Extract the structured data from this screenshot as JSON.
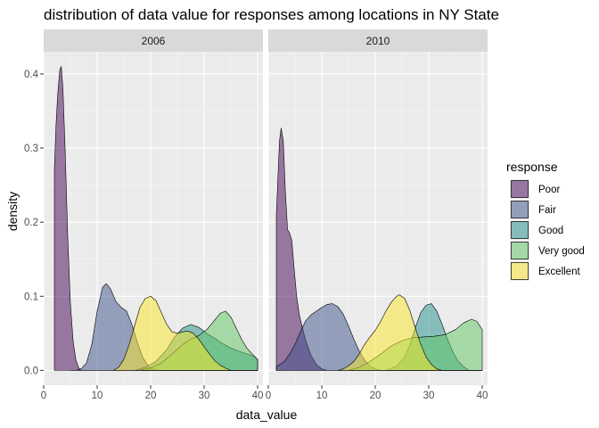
{
  "chart_data": {
    "type": "area",
    "subtype": "density",
    "title": "distribution of data value for responses among locations in NY State",
    "xlabel": "data_value",
    "ylabel": "density",
    "xlim": [
      0,
      41
    ],
    "ylim": [
      -0.02,
      0.43
    ],
    "x_ticks": [
      0,
      10,
      20,
      30,
      40
    ],
    "y_ticks": [
      0.0,
      0.1,
      0.2,
      0.3,
      0.4
    ],
    "y_tick_labels": [
      "0.0",
      "0.1",
      "0.2",
      "0.3",
      "0.4"
    ],
    "grid": true,
    "legend": {
      "title": "response",
      "position": "right"
    },
    "panels": [
      {
        "label": "2006",
        "series": [
          {
            "name": "Poor",
            "color": "#440154",
            "points": [
              [
                2,
                0.27
              ],
              [
                2.3,
                0.33
              ],
              [
                2.6,
                0.37
              ],
              [
                3,
                0.405
              ],
              [
                3.3,
                0.41
              ],
              [
                3.6,
                0.38
              ],
              [
                4,
                0.3
              ],
              [
                4.5,
                0.18
              ],
              [
                5,
                0.09
              ],
              [
                5.5,
                0.04
              ],
              [
                6,
                0.015
              ],
              [
                6.5,
                0.004
              ],
              [
                7,
                0.0
              ],
              [
                40,
                0.0
              ]
            ]
          },
          {
            "name": "Fair",
            "color": "#3B528B",
            "points": [
              [
                5,
                0.0
              ],
              [
                6,
                0.0
              ],
              [
                7,
                0.002
              ],
              [
                8,
                0.01
              ],
              [
                9,
                0.035
              ],
              [
                10,
                0.08
              ],
              [
                11,
                0.112
              ],
              [
                11.7,
                0.117
              ],
              [
                12.5,
                0.11
              ],
              [
                13.5,
                0.093
              ],
              [
                14.5,
                0.085
              ],
              [
                15.5,
                0.08
              ],
              [
                16.5,
                0.062
              ],
              [
                17.5,
                0.038
              ],
              [
                18.5,
                0.018
              ],
              [
                19.5,
                0.006
              ],
              [
                20.5,
                0.002
              ],
              [
                21.5,
                0.0
              ],
              [
                40,
                0.0
              ]
            ]
          },
          {
            "name": "Good",
            "color": "#21908C",
            "points": [
              [
                17,
                0.0
              ],
              [
                19,
                0.004
              ],
              [
                21,
                0.012
              ],
              [
                23,
                0.028
              ],
              [
                24.5,
                0.045
              ],
              [
                26,
                0.057
              ],
              [
                27.5,
                0.062
              ],
              [
                29,
                0.058
              ],
              [
                30.5,
                0.05
              ],
              [
                32,
                0.043
              ],
              [
                33.5,
                0.036
              ],
              [
                35,
                0.03
              ],
              [
                36.5,
                0.026
              ],
              [
                38,
                0.022
              ],
              [
                39,
                0.02
              ],
              [
                40,
                0.015
              ]
            ]
          },
          {
            "name": "Very good",
            "color": "#5DC863",
            "points": [
              [
                18,
                0.0
              ],
              [
                20,
                0.003
              ],
              [
                22,
                0.01
              ],
              [
                24,
                0.022
              ],
              [
                26,
                0.035
              ],
              [
                27.5,
                0.042
              ],
              [
                29,
                0.047
              ],
              [
                30.5,
                0.055
              ],
              [
                32,
                0.068
              ],
              [
                33,
                0.077
              ],
              [
                34,
                0.08
              ],
              [
                35,
                0.072
              ],
              [
                36,
                0.057
              ],
              [
                37,
                0.042
              ],
              [
                38,
                0.03
              ],
              [
                39,
                0.022
              ],
              [
                40,
                0.015
              ]
            ]
          },
          {
            "name": "Excellent",
            "color": "#FDE725",
            "points": [
              [
                13,
                0.0
              ],
              [
                14,
                0.004
              ],
              [
                15,
                0.015
              ],
              [
                16,
                0.035
              ],
              [
                17,
                0.06
              ],
              [
                18,
                0.085
              ],
              [
                19,
                0.097
              ],
              [
                20,
                0.1
              ],
              [
                21,
                0.094
              ],
              [
                22,
                0.078
              ],
              [
                23,
                0.062
              ],
              [
                24,
                0.052
              ],
              [
                25,
                0.05
              ],
              [
                26,
                0.052
              ],
              [
                27,
                0.053
              ],
              [
                28,
                0.05
              ],
              [
                29,
                0.042
              ],
              [
                30,
                0.032
              ],
              [
                31,
                0.022
              ],
              [
                32,
                0.013
              ],
              [
                33,
                0.007
              ],
              [
                34,
                0.003
              ],
              [
                35,
                0.0
              ],
              [
                40,
                0.0
              ]
            ]
          }
        ]
      },
      {
        "label": "2010",
        "series": [
          {
            "name": "Poor",
            "color": "#440154",
            "points": [
              [
                1.5,
                0.21
              ],
              [
                1.8,
                0.26
              ],
              [
                2.1,
                0.31
              ],
              [
                2.4,
                0.327
              ],
              [
                2.8,
                0.31
              ],
              [
                3.2,
                0.24
              ],
              [
                3.6,
                0.19
              ],
              [
                4,
                0.185
              ],
              [
                4.4,
                0.175
              ],
              [
                4.8,
                0.14
              ],
              [
                5.3,
                0.1
              ],
              [
                5.8,
                0.075
              ],
              [
                6.3,
                0.06
              ],
              [
                7,
                0.04
              ],
              [
                8,
                0.02
              ],
              [
                9,
                0.008
              ],
              [
                10,
                0.002
              ],
              [
                11,
                0.0
              ],
              [
                40,
                0.0
              ]
            ]
          },
          {
            "name": "Fair",
            "color": "#3B528B",
            "points": [
              [
                1.5,
                0.005
              ],
              [
                3,
                0.012
              ],
              [
                4,
                0.022
              ],
              [
                5,
                0.035
              ],
              [
                6,
                0.052
              ],
              [
                7,
                0.067
              ],
              [
                8,
                0.075
              ],
              [
                9,
                0.08
              ],
              [
                10,
                0.085
              ],
              [
                11,
                0.089
              ],
              [
                12,
                0.09
              ],
              [
                13,
                0.086
              ],
              [
                14,
                0.076
              ],
              [
                15,
                0.06
              ],
              [
                16,
                0.042
              ],
              [
                17,
                0.026
              ],
              [
                18,
                0.014
              ],
              [
                19,
                0.006
              ],
              [
                20,
                0.002
              ],
              [
                21,
                0.0
              ],
              [
                40,
                0.0
              ]
            ]
          },
          {
            "name": "Good",
            "color": "#21908C",
            "points": [
              [
                22,
                0.0
              ],
              [
                24,
                0.006
              ],
              [
                25.5,
                0.018
              ],
              [
                26.5,
                0.035
              ],
              [
                27.5,
                0.058
              ],
              [
                28.5,
                0.078
              ],
              [
                29.5,
                0.088
              ],
              [
                30.5,
                0.09
              ],
              [
                31.5,
                0.08
              ],
              [
                32.5,
                0.062
              ],
              [
                33.5,
                0.042
              ],
              [
                34.5,
                0.025
              ],
              [
                35.5,
                0.012
              ],
              [
                36.5,
                0.005
              ],
              [
                37.5,
                0.0
              ],
              [
                40,
                0.0
              ]
            ]
          },
          {
            "name": "Very good",
            "color": "#5DC863",
            "points": [
              [
                15,
                0.0
              ],
              [
                17,
                0.004
              ],
              [
                19,
                0.012
              ],
              [
                21,
                0.022
              ],
              [
                23,
                0.033
              ],
              [
                25,
                0.04
              ],
              [
                27,
                0.044
              ],
              [
                29,
                0.045
              ],
              [
                31,
                0.046
              ],
              [
                33,
                0.048
              ],
              [
                35,
                0.055
              ],
              [
                36.5,
                0.064
              ],
              [
                38,
                0.069
              ],
              [
                39,
                0.066
              ],
              [
                40,
                0.055
              ]
            ]
          },
          {
            "name": "Excellent",
            "color": "#FDE725",
            "points": [
              [
                13,
                0.0
              ],
              [
                14,
                0.002
              ],
              [
                15,
                0.006
              ],
              [
                16,
                0.012
              ],
              [
                17,
                0.022
              ],
              [
                18,
                0.035
              ],
              [
                19,
                0.045
              ],
              [
                20,
                0.054
              ],
              [
                21,
                0.066
              ],
              [
                22,
                0.08
              ],
              [
                23,
                0.092
              ],
              [
                24,
                0.1
              ],
              [
                24.5,
                0.102
              ],
              [
                25.5,
                0.097
              ],
              [
                26.5,
                0.08
              ],
              [
                27.5,
                0.057
              ],
              [
                28.5,
                0.035
              ],
              [
                29.5,
                0.018
              ],
              [
                30.5,
                0.008
              ],
              [
                31.5,
                0.002
              ],
              [
                32.5,
                0.0
              ],
              [
                40,
                0.0
              ]
            ]
          }
        ]
      }
    ]
  }
}
